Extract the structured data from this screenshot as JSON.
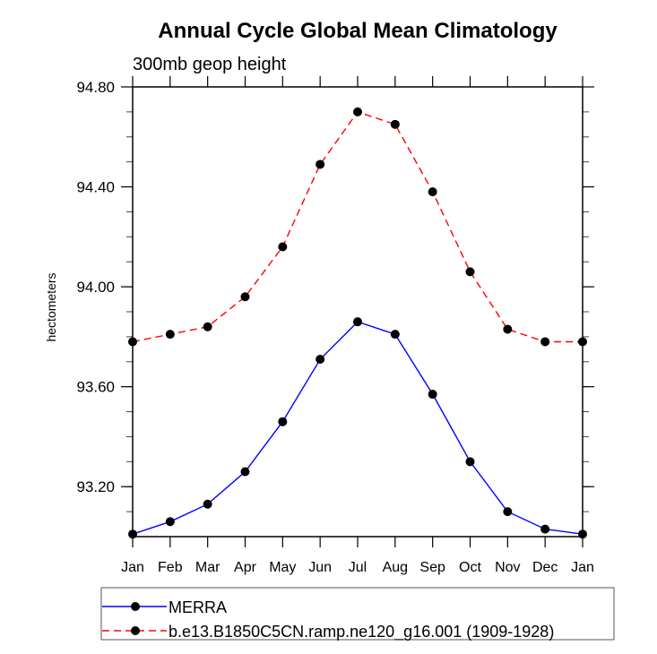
{
  "chart_data": {
    "type": "line",
    "title": "Annual Cycle Global Mean Climatology",
    "subtitle": "300mb geop height",
    "xlabel": "",
    "ylabel": "hectometers",
    "categories": [
      "Jan",
      "Feb",
      "Mar",
      "Apr",
      "May",
      "Jun",
      "Jul",
      "Aug",
      "Sep",
      "Oct",
      "Nov",
      "Dec",
      "Jan"
    ],
    "ylim": [
      93.0,
      94.8
    ],
    "yticks": [
      93.2,
      93.6,
      94.0,
      94.4,
      94.8
    ],
    "ytick_labels": [
      "93.20",
      "93.60",
      "94.00",
      "94.40",
      "94.80"
    ],
    "yminor_step": 0.1,
    "grid": false,
    "legend_position": "bottom",
    "series": [
      {
        "name": "MERRA",
        "color": "#0000ff",
        "line_style": "solid",
        "marker": "filled-circle",
        "marker_color": "#000000",
        "values": [
          93.01,
          93.06,
          93.13,
          93.26,
          93.46,
          93.71,
          93.86,
          93.81,
          93.57,
          93.3,
          93.1,
          93.03,
          93.01
        ]
      },
      {
        "name": "b.e13.B1850C5CN.ramp.ne120_g16.001 (1909-1928)",
        "color": "#ff0000",
        "line_style": "dashed",
        "marker": "filled-circle",
        "marker_color": "#000000",
        "values": [
          93.78,
          93.81,
          93.84,
          93.96,
          94.16,
          94.49,
          94.7,
          94.65,
          94.38,
          94.06,
          93.83,
          93.78,
          93.78
        ]
      }
    ]
  }
}
